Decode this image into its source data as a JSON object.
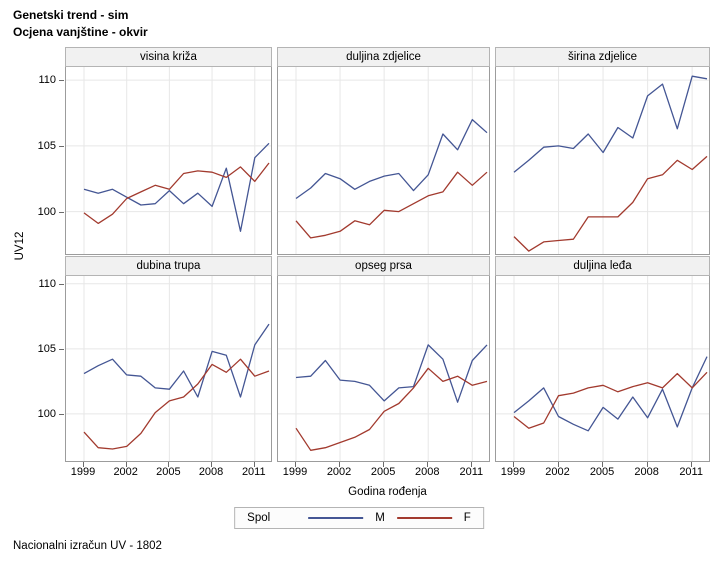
{
  "header": {
    "title_line1": "Genetski trend - sim",
    "title_line2": "Ocjena vanjštine - okvir"
  },
  "footer": {
    "note": "Nacionalni izračun UV - 1802"
  },
  "colors": {
    "male_line": "#445694",
    "female_line": "#A23A2E",
    "header_strip_bg": "#f1f1f1",
    "panel_border": "#9c9c9c",
    "gridline": "#e7e7e7",
    "legend_border": "#b4b4b4"
  },
  "chart_data": {
    "type": "line",
    "layout": "trellis 2 rows x 3 columns, shared axes",
    "x": [
      1999,
      2000,
      2001,
      2002,
      2003,
      2004,
      2005,
      2006,
      2007,
      2008,
      2009,
      2010,
      2011,
      2012
    ],
    "xticks": [
      1999,
      2002,
      2005,
      2008,
      2011
    ],
    "yticks": [
      100,
      105,
      110
    ],
    "ylim": [
      96.5,
      111.0
    ],
    "xlabel": "Godina rođenja",
    "ylabel": "UV12",
    "grid": true,
    "legend": {
      "title": "Spol",
      "position": "bottom",
      "entries": [
        {
          "label": "M",
          "color": "#445694"
        },
        {
          "label": "F",
          "color": "#A23A2E"
        }
      ]
    },
    "panels": [
      {
        "title": "visina križa",
        "series": [
          {
            "name": "M",
            "values": [
              101.7,
              101.4,
              101.7,
              101.1,
              100.5,
              100.6,
              101.6,
              100.6,
              101.4,
              100.4,
              103.3,
              98.5,
              104.1,
              105.2
            ]
          },
          {
            "name": "F",
            "values": [
              99.9,
              99.1,
              99.8,
              101.0,
              101.5,
              102.0,
              101.7,
              102.9,
              103.1,
              103.0,
              102.6,
              103.4,
              102.3,
              103.7
            ]
          }
        ]
      },
      {
        "title": "duljina zdjelice",
        "series": [
          {
            "name": "M",
            "values": [
              101.0,
              101.8,
              102.9,
              102.5,
              101.7,
              102.3,
              102.7,
              102.9,
              101.6,
              102.8,
              105.9,
              104.7,
              107.0,
              106.0
            ]
          },
          {
            "name": "F",
            "values": [
              99.3,
              98.0,
              98.2,
              98.5,
              99.3,
              99.0,
              100.1,
              100.0,
              100.6,
              101.2,
              101.5,
              103.0,
              102.0,
              103.0
            ]
          }
        ]
      },
      {
        "title": "širina zdjelice",
        "series": [
          {
            "name": "M",
            "values": [
              103.0,
              103.9,
              104.9,
              105.0,
              104.8,
              105.9,
              104.5,
              106.4,
              105.6,
              108.8,
              109.7,
              106.3,
              110.3,
              110.1
            ]
          },
          {
            "name": "F",
            "values": [
              98.1,
              97.0,
              97.7,
              97.8,
              97.9,
              99.6,
              99.6,
              99.6,
              100.7,
              102.5,
              102.8,
              103.9,
              103.2,
              104.2
            ]
          }
        ]
      },
      {
        "title": "dubina trupa",
        "series": [
          {
            "name": "M",
            "values": [
              103.1,
              103.7,
              104.2,
              103.0,
              102.9,
              102.0,
              101.9,
              103.3,
              101.3,
              104.8,
              104.5,
              101.3,
              105.3,
              106.9
            ]
          },
          {
            "name": "F",
            "values": [
              98.6,
              97.4,
              97.3,
              97.5,
              98.5,
              100.1,
              101.0,
              101.3,
              102.3,
              103.8,
              103.2,
              104.2,
              102.9,
              103.3
            ]
          }
        ]
      },
      {
        "title": "opseg prsa",
        "series": [
          {
            "name": "M",
            "values": [
              102.8,
              102.9,
              104.1,
              102.6,
              102.5,
              102.2,
              101.0,
              102.0,
              102.1,
              105.3,
              104.2,
              100.9,
              104.1,
              105.3
            ]
          },
          {
            "name": "F",
            "values": [
              98.9,
              97.2,
              97.4,
              97.8,
              98.2,
              98.8,
              100.2,
              100.8,
              102.0,
              103.5,
              102.5,
              102.9,
              102.2,
              102.5
            ]
          }
        ]
      },
      {
        "title": "duljina leđa",
        "series": [
          {
            "name": "M",
            "values": [
              100.1,
              101.0,
              102.0,
              99.8,
              99.2,
              98.7,
              100.5,
              99.6,
              101.3,
              99.7,
              101.9,
              99.0,
              102.0,
              104.4
            ]
          },
          {
            "name": "F",
            "values": [
              99.8,
              98.9,
              99.3,
              101.4,
              101.6,
              102.0,
              102.2,
              101.7,
              102.1,
              102.4,
              102.0,
              103.1,
              102.0,
              103.2
            ]
          }
        ]
      }
    ]
  }
}
